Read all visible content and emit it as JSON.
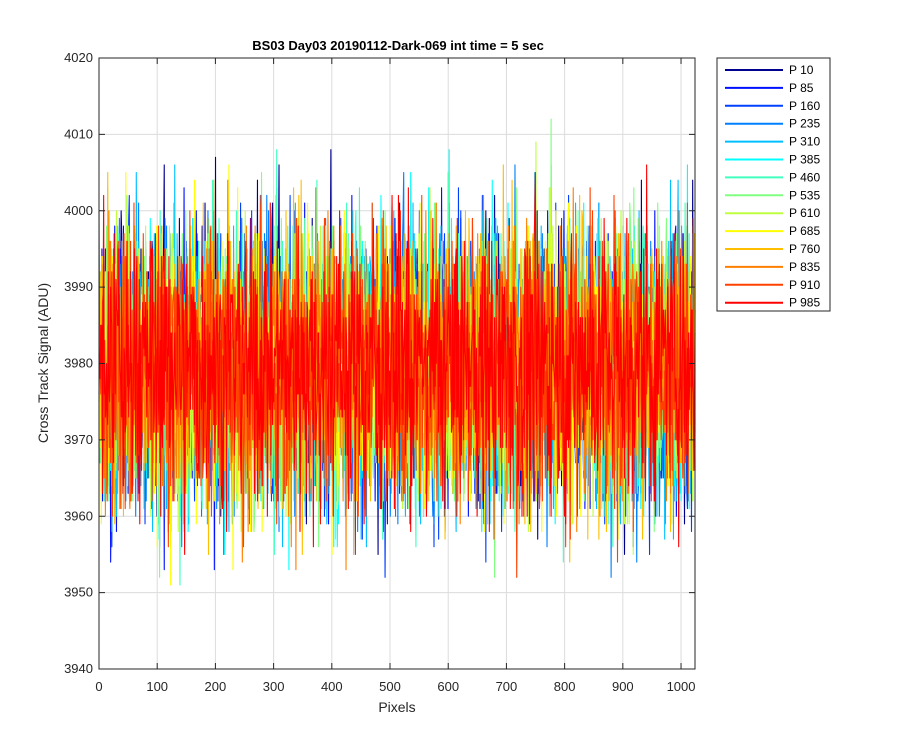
{
  "chart_data": {
    "type": "line",
    "title": "BS03 Day03 20190112-Dark-069 int time = 5 sec",
    "xlabel": "Pixels",
    "ylabel": "Cross Track Signal (ADU)",
    "xlim": [
      0,
      1024
    ],
    "ylim": [
      3940,
      4020
    ],
    "xticks": [
      "0",
      "100",
      "200",
      "300",
      "400",
      "500",
      "600",
      "700",
      "800",
      "900",
      "1000"
    ],
    "yticks": [
      "3940",
      "3950",
      "3960",
      "3970",
      "3980",
      "3990",
      "4000",
      "4010",
      "4020"
    ],
    "grid": true,
    "legend_position": "outside-top-right",
    "noise": {
      "mean": 3980,
      "typical_range": [
        3962,
        3998
      ],
      "extreme_range": [
        3946,
        4015
      ],
      "points_per_series": 1024
    },
    "series": [
      {
        "name": "P 10",
        "color": "#00008f"
      },
      {
        "name": "P 85",
        "color": "#0010ff"
      },
      {
        "name": "P 160",
        "color": "#0040ff"
      },
      {
        "name": "P 235",
        "color": "#0080ff"
      },
      {
        "name": "P 310",
        "color": "#00bfff"
      },
      {
        "name": "P 385",
        "color": "#00ffff"
      },
      {
        "name": "P 460",
        "color": "#40ffbf"
      },
      {
        "name": "P 535",
        "color": "#80ff80"
      },
      {
        "name": "P 610",
        "color": "#bfff40"
      },
      {
        "name": "P 685",
        "color": "#ffff00"
      },
      {
        "name": "P 760",
        "color": "#ffbf00"
      },
      {
        "name": "P 835",
        "color": "#ff8000"
      },
      {
        "name": "P 910",
        "color": "#ff4000"
      },
      {
        "name": "P 985",
        "color": "#ff0000"
      }
    ]
  }
}
